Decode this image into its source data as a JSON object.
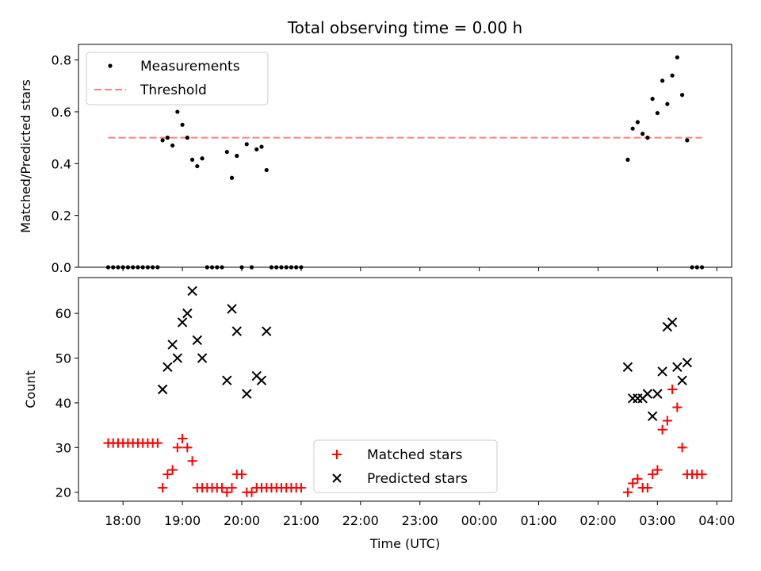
{
  "chart_data": [
    {
      "type": "scatter",
      "title": "Total observing time = 0.00 h",
      "ylabel": "Matched/Predicted stars",
      "xlabel": "",
      "ylim": [
        0,
        0.86
      ],
      "yticks": [
        0.0,
        0.2,
        0.4,
        0.6,
        0.8
      ],
      "ytick_labels": [
        "0.0",
        "0.2",
        "0.4",
        "0.6",
        "0.8"
      ],
      "grid": false,
      "legend_position": "top-left",
      "legend": [
        "Measurements",
        "Threshold"
      ],
      "threshold": {
        "name": "Threshold",
        "value": 0.5,
        "x_range": [
          "17:45",
          "03:45"
        ],
        "color": "#ff7f7f",
        "style": "dashed"
      },
      "series": [
        {
          "name": "Measurements",
          "marker": "dot",
          "color": "#000000",
          "points": [
            [
              "17:45",
              0
            ],
            [
              "17:50",
              0
            ],
            [
              "17:55",
              0
            ],
            [
              "18:00",
              0
            ],
            [
              "18:05",
              0
            ],
            [
              "18:10",
              0
            ],
            [
              "18:15",
              0
            ],
            [
              "18:20",
              0
            ],
            [
              "18:25",
              0
            ],
            [
              "18:30",
              0
            ],
            [
              "18:35",
              0
            ],
            [
              "18:40",
              0.49
            ],
            [
              "18:45",
              0.5
            ],
            [
              "18:50",
              0.47
            ],
            [
              "18:55",
              0.6
            ],
            [
              "19:00",
              0.55
            ],
            [
              "19:05",
              0.5
            ],
            [
              "19:10",
              0.415
            ],
            [
              "19:15",
              0.39
            ],
            [
              "19:20",
              0.42
            ],
            [
              "19:25",
              0
            ],
            [
              "19:30",
              0
            ],
            [
              "19:35",
              0
            ],
            [
              "19:40",
              0
            ],
            [
              "19:45",
              0.445
            ],
            [
              "19:50",
              0.345
            ],
            [
              "19:55",
              0.43
            ],
            [
              "20:00",
              0
            ],
            [
              "20:05",
              0.475
            ],
            [
              "20:10",
              0
            ],
            [
              "20:15",
              0.455
            ],
            [
              "20:20",
              0.465
            ],
            [
              "20:25",
              0.375
            ],
            [
              "20:30",
              0
            ],
            [
              "20:35",
              0
            ],
            [
              "20:40",
              0
            ],
            [
              "20:45",
              0
            ],
            [
              "20:50",
              0
            ],
            [
              "20:55",
              0
            ],
            [
              "21:00",
              0
            ],
            [
              "02:30",
              0.415
            ],
            [
              "02:35",
              0.535
            ],
            [
              "02:40",
              0.56
            ],
            [
              "02:45",
              0.515
            ],
            [
              "02:50",
              0.5
            ],
            [
              "02:55",
              0.65
            ],
            [
              "03:00",
              0.595
            ],
            [
              "03:05",
              0.72
            ],
            [
              "03:10",
              0.63
            ],
            [
              "03:15",
              0.74
            ],
            [
              "03:20",
              0.81
            ],
            [
              "03:25",
              0.665
            ],
            [
              "03:30",
              0.49
            ],
            [
              "03:35",
              0
            ],
            [
              "03:40",
              0
            ],
            [
              "03:45",
              0
            ]
          ]
        }
      ]
    },
    {
      "type": "scatter",
      "title": "",
      "ylabel": "Count",
      "xlabel": "Time (UTC)",
      "ylim": [
        18,
        68
      ],
      "yticks": [
        20,
        30,
        40,
        50,
        60
      ],
      "ytick_labels": [
        "20",
        "30",
        "40",
        "50",
        "60"
      ],
      "xlim": [
        "17:15",
        "04:15"
      ],
      "xticks": [
        "18:00",
        "19:00",
        "20:00",
        "21:00",
        "22:00",
        "23:00",
        "00:00",
        "01:00",
        "02:00",
        "03:00",
        "04:00"
      ],
      "xtick_labels": [
        "18:00",
        "19:00",
        "20:00",
        "21:00",
        "22:00",
        "23:00",
        "00:00",
        "01:00",
        "02:00",
        "03:00",
        "04:00"
      ],
      "grid": false,
      "legend_position": "lower-center",
      "legend": [
        "Matched stars",
        "Predicted stars"
      ],
      "series": [
        {
          "name": "Matched stars",
          "marker": "plus",
          "color": "#ff0000",
          "points": [
            [
              "17:45",
              31
            ],
            [
              "17:50",
              31
            ],
            [
              "17:55",
              31
            ],
            [
              "18:00",
              31
            ],
            [
              "18:05",
              31
            ],
            [
              "18:10",
              31
            ],
            [
              "18:15",
              31
            ],
            [
              "18:20",
              31
            ],
            [
              "18:25",
              31
            ],
            [
              "18:30",
              31
            ],
            [
              "18:35",
              31
            ],
            [
              "18:40",
              21
            ],
            [
              "18:45",
              24
            ],
            [
              "18:50",
              25
            ],
            [
              "18:55",
              30
            ],
            [
              "19:00",
              32
            ],
            [
              "19:05",
              30
            ],
            [
              "19:10",
              27
            ],
            [
              "19:15",
              21
            ],
            [
              "19:20",
              21
            ],
            [
              "19:25",
              21
            ],
            [
              "19:30",
              21
            ],
            [
              "19:35",
              21
            ],
            [
              "19:40",
              21
            ],
            [
              "19:45",
              20
            ],
            [
              "19:50",
              21
            ],
            [
              "19:55",
              24
            ],
            [
              "20:00",
              24
            ],
            [
              "20:05",
              20
            ],
            [
              "20:10",
              20
            ],
            [
              "20:15",
              21
            ],
            [
              "20:20",
              21
            ],
            [
              "20:25",
              21
            ],
            [
              "20:30",
              21
            ],
            [
              "20:35",
              21
            ],
            [
              "20:40",
              21
            ],
            [
              "20:45",
              21
            ],
            [
              "20:50",
              21
            ],
            [
              "20:55",
              21
            ],
            [
              "21:00",
              21
            ],
            [
              "02:30",
              20
            ],
            [
              "02:35",
              22
            ],
            [
              "02:40",
              23
            ],
            [
              "02:45",
              21
            ],
            [
              "02:50",
              21
            ],
            [
              "02:55",
              24
            ],
            [
              "03:00",
              25
            ],
            [
              "03:05",
              34
            ],
            [
              "03:10",
              36
            ],
            [
              "03:15",
              43
            ],
            [
              "03:20",
              39
            ],
            [
              "03:25",
              30
            ],
            [
              "03:30",
              24
            ],
            [
              "03:35",
              24
            ],
            [
              "03:40",
              24
            ],
            [
              "03:45",
              24
            ]
          ]
        },
        {
          "name": "Predicted stars",
          "marker": "x",
          "color": "#000000",
          "points": [
            [
              "18:40",
              43
            ],
            [
              "18:45",
              48
            ],
            [
              "18:50",
              53
            ],
            [
              "18:55",
              50
            ],
            [
              "19:00",
              58
            ],
            [
              "19:05",
              60
            ],
            [
              "19:10",
              65
            ],
            [
              "19:15",
              54
            ],
            [
              "19:20",
              50
            ],
            [
              "19:45",
              45
            ],
            [
              "19:50",
              61
            ],
            [
              "19:55",
              56
            ],
            [
              "20:05",
              42
            ],
            [
              "20:15",
              46
            ],
            [
              "20:20",
              45
            ],
            [
              "20:25",
              56
            ],
            [
              "02:30",
              48
            ],
            [
              "02:35",
              41
            ],
            [
              "02:40",
              41
            ],
            [
              "02:45",
              41
            ],
            [
              "02:50",
              42
            ],
            [
              "02:55",
              37
            ],
            [
              "03:00",
              42
            ],
            [
              "03:05",
              47
            ],
            [
              "03:10",
              57
            ],
            [
              "03:15",
              58
            ],
            [
              "03:20",
              48
            ],
            [
              "03:25",
              45
            ],
            [
              "03:30",
              49
            ]
          ]
        }
      ]
    }
  ]
}
